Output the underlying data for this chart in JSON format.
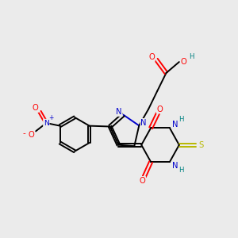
{
  "bg_color": "#ebebeb",
  "atom_colors": {
    "C": "#000000",
    "N": "#0000cc",
    "O": "#ff0000",
    "S": "#b8b800",
    "H": "#008080"
  },
  "bond_color": "#000000",
  "figsize": [
    3.0,
    3.0
  ],
  "dpi": 100
}
